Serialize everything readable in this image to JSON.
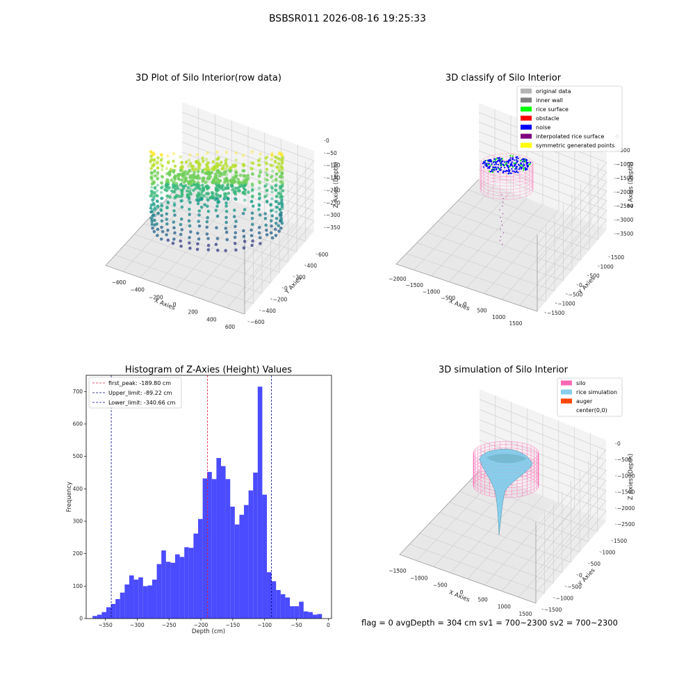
{
  "figure": {
    "suptitle": "BSBSR011 2026-08-16 19:25:33",
    "status_line": "flag = 0     avgDepth = 304 cm  sv1 = 700~2300  sv2 = 700~2300"
  },
  "colors": {
    "silo": "#ff69b4",
    "rice_simulation": "#87ceeb",
    "auger": "#ff4500",
    "original_data": "#b3b3b3",
    "inner_wall": "#808080",
    "rice_surface": "#00ff00",
    "obstacle": "#ff0000",
    "noise": "#0000ff",
    "interpolated_rice_surface": "#800080",
    "symmetric_generated_points": "#ffff00",
    "histogram_bar": "#4b4bff",
    "first_peak_line": "#dc143c",
    "limit_line": "#00008b"
  },
  "chart_data": [
    {
      "type": "scatter",
      "subtype": "3d",
      "title": "3D Plot of Silo Interior(row data)",
      "xlabel": "X Axies",
      "ylabel": "Y Axies",
      "zlabel": "Z Axies (Depth)",
      "xticks": [
        "−600",
        "−400",
        "−200",
        "0",
        "200",
        "400",
        "600"
      ],
      "yticks": [
        "−600",
        "−400",
        "−200",
        "0",
        "200",
        "400",
        "600"
      ],
      "zticks": [
        "0",
        "−50",
        "−100",
        "−150",
        "−200",
        "−250",
        "−300",
        "−350"
      ],
      "xlim": [
        -700,
        600
      ],
      "ylim": [
        -600,
        600
      ],
      "zlim": [
        -380,
        0
      ],
      "colormap": "viridis"
    },
    {
      "type": "scatter",
      "subtype": "3d",
      "title": "3D classify of Silo Interior",
      "xlabel": "X Axies",
      "ylabel": "Y Axies",
      "zlabel": "Z Axies (Depth)",
      "xticks": [
        "−2000",
        "−1500",
        "−1000",
        "−500",
        "0",
        "500",
        "1000",
        "1500"
      ],
      "yticks": [
        "−1500",
        "−1000",
        "−500",
        "0",
        "500",
        "1000",
        "1500"
      ],
      "zticks": [
        "0",
        "−500",
        "−1000",
        "−1500",
        "−2000",
        "−2500",
        "−3000",
        "−3500"
      ],
      "legend": [
        "original data",
        "inner wall",
        "rice surface",
        "obstacle",
        "noise",
        "interpolated rice surface",
        "symmetric generated points"
      ],
      "legend_placement": "top-right"
    },
    {
      "type": "bar",
      "subtype": "histogram",
      "title": "Histogram of Z-Axies (Height) Values",
      "xlabel": "Depth (cm)",
      "ylabel": "Frequency",
      "xlim": [
        -380,
        5
      ],
      "ylim": [
        0,
        750
      ],
      "xticks": [
        -350,
        -300,
        -250,
        -200,
        -150,
        -100,
        -50,
        0
      ],
      "xtick_labels": [
        "−350",
        "−300",
        "−250",
        "−200",
        "−150",
        "−100",
        "−50",
        "0"
      ],
      "yticks": [
        0,
        100,
        200,
        300,
        400,
        500,
        600,
        700
      ],
      "bin_start": -370,
      "bin_width": 7.2,
      "values": [
        8,
        12,
        20,
        35,
        45,
        60,
        80,
        105,
        133,
        120,
        127,
        100,
        102,
        120,
        168,
        210,
        175,
        172,
        198,
        190,
        220,
        218,
        262,
        307,
        432,
        452,
        430,
        495,
        470,
        430,
        345,
        290,
        320,
        350,
        395,
        450,
        715,
        382,
        143,
        115,
        88,
        75,
        65,
        38,
        38,
        52,
        22,
        20,
        12,
        14
      ],
      "vlines": [
        {
          "label": "first_peak: -189.80 cm",
          "x": -189.8,
          "color": "#dc143c"
        },
        {
          "label": "Upper_limit: -89.22 cm",
          "x": -89.22,
          "color": "#00008b"
        },
        {
          "label": "Lower_limit: -340.66 cm",
          "x": -340.66,
          "color": "#00008b"
        }
      ],
      "legend_placement": "top-left",
      "grid": false
    },
    {
      "type": "area",
      "subtype": "3d-surface",
      "title": "3D simulation of Silo Interior",
      "xlabel": "X Axies",
      "ylabel": "Y Axies",
      "zlabel": "Z Axies (Depth)",
      "xticks": [
        "−1500",
        "−1000",
        "−500",
        "0",
        "500",
        "1000",
        "1500"
      ],
      "yticks": [
        "−1500",
        "−1000",
        "−500",
        "0",
        "500",
        "1000",
        "1500"
      ],
      "zticks": [
        "0",
        "−500",
        "−1000",
        "−1500",
        "−2000",
        "−2500"
      ],
      "legend": [
        "silo",
        "rice simulation",
        "auger",
        "center(0,0)"
      ],
      "legend_placement": "top-right"
    }
  ]
}
